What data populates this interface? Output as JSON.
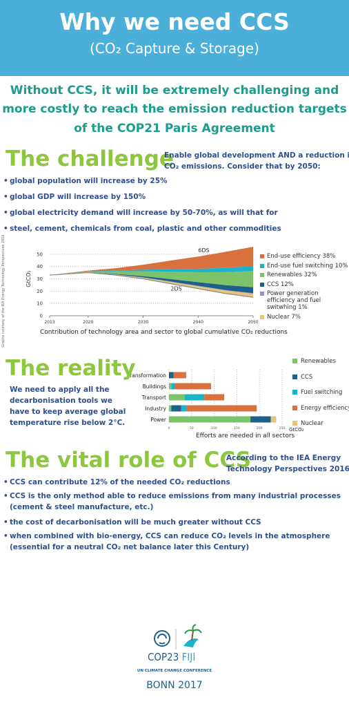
{
  "header": {
    "title": "Why we need CCS",
    "subtitle": "(CO₂ Capture & Storage)"
  },
  "intro": [
    "Without CCS, it will be extremely challenging and",
    "more costly to reach the emission reduction targets",
    "of the COP21 Paris Agreement"
  ],
  "challenge": {
    "heading": "The challenge",
    "note": [
      "Enable global development AND a reduction in",
      "CO₂ emissions. Consider that by 2050:"
    ],
    "bullets": [
      "global population will increase by 25%",
      "global GDP will increase by 150%",
      "global electricity demand will increase by 50-70%, as will that for",
      "steel, cement, chemicals from coal, plastic and other commodities"
    ]
  },
  "credit": "Graphs courtesy of the IEA Energy Technology Perspectives 2016",
  "chart_data": [
    {
      "type": "area",
      "stacked": true,
      "x": [
        2013,
        2020,
        2025,
        2030,
        2035,
        2040,
        2045,
        2050
      ],
      "xlim": [
        2013,
        2050
      ],
      "xticks": [
        2013,
        2020,
        2030,
        2040,
        2050
      ],
      "ylim": [
        0,
        60
      ],
      "yticks": [
        0,
        10,
        20,
        30,
        40,
        50
      ],
      "ylabel": "GtCO₂",
      "grid": true,
      "annotations": [
        "6DS"
      ],
      "caption": "Contribution of technology area and sector to global cumulative CO₂ reductions",
      "series": [
        {
          "name": "2DS",
          "color": "#8a8a8a",
          "values": [
            33,
            35,
            33,
            30,
            26,
            22,
            18,
            15
          ]
        },
        {
          "name": "Nuclear  7%",
          "color": "#e8c47a",
          "values": [
            0,
            0.2,
            0.5,
            1,
            1.5,
            2,
            2.5,
            2.9
          ]
        },
        {
          "name": "Power generation efficiency and fuel switwhing  1%",
          "color": "#9a8fc0",
          "values": [
            0,
            0.05,
            0.1,
            0.2,
            0.3,
            0.3,
            0.4,
            0.4
          ]
        },
        {
          "name": "CCS  12%",
          "color": "#1f5f8b",
          "values": [
            0,
            0.1,
            0.4,
            1,
            2,
            3,
            4,
            4.9
          ]
        },
        {
          "name": "Renewables  32%",
          "color": "#7dc36a",
          "values": [
            0,
            0.5,
            2,
            4,
            6,
            8,
            10.5,
            13.1
          ]
        },
        {
          "name": "End-use fuel switching  10%",
          "color": "#1ab3c9",
          "values": [
            0,
            0.2,
            0.6,
            1.2,
            2,
            2.8,
            3.5,
            4.1
          ]
        },
        {
          "name": "End-use efficiency  38%",
          "color": "#d9703f",
          "values": [
            0,
            0.6,
            2,
            4,
            7,
            10,
            13,
            15.6
          ]
        }
      ]
    },
    {
      "type": "bar",
      "orientation": "horizontal",
      "stacked": true,
      "categories": [
        "Transformation",
        "Buildings",
        "Transport",
        "Industry",
        "Power"
      ],
      "xlim": [
        0,
        250
      ],
      "xticks": [
        0,
        50,
        100,
        150,
        200,
        250
      ],
      "xlabel": "GtCO₂",
      "grid": true,
      "caption": "Efforts are needed in all sectors",
      "series": [
        {
          "name": "Renewables",
          "color": "#7dc36a",
          "values": [
            0,
            5,
            35,
            5,
            180
          ]
        },
        {
          "name": "CCS",
          "color": "#1f5f8b",
          "values": [
            10,
            0,
            0,
            22,
            45
          ]
        },
        {
          "name": "Fuel switching",
          "color": "#1ab3c9",
          "values": [
            0,
            8,
            43,
            12,
            0
          ]
        },
        {
          "name": "Energy efficiency",
          "color": "#d9703f",
          "values": [
            28,
            80,
            44,
            155,
            0
          ]
        },
        {
          "name": "Nuclear",
          "color": "#e8c47a",
          "values": [
            0,
            0,
            0,
            0,
            12
          ]
        }
      ]
    }
  ],
  "reality": {
    "heading": "The reality",
    "text": [
      "We need to apply all the",
      "decarbonisation tools we",
      "have to keep average global",
      "temperature rise below 2°C."
    ]
  },
  "vital_role": {
    "heading": "The vital role of CCS",
    "note": [
      "According to the IEA Energy",
      "Technology Perspectives 2016:"
    ],
    "bullets": [
      [
        "CCS can contribute 12% of the needed CO₂ reductions"
      ],
      [
        "CCS is the only method able to reduce emissions from many industrial processes",
        "(cement & steel manufacture, etc.)"
      ],
      [
        "the cost of decarbonisation will be much greater without CCS"
      ],
      [
        "when combined with bio-energy, CCS can reduce CO₂ levels in the atmosphere",
        "(essential for a neutral CO₂ net balance later this Century)"
      ]
    ]
  },
  "footer": {
    "event": "COP23",
    "host": "FIJI",
    "conference": "UN CLIMATE CHANGE CONFERENCE",
    "place": "BONN 2017"
  }
}
